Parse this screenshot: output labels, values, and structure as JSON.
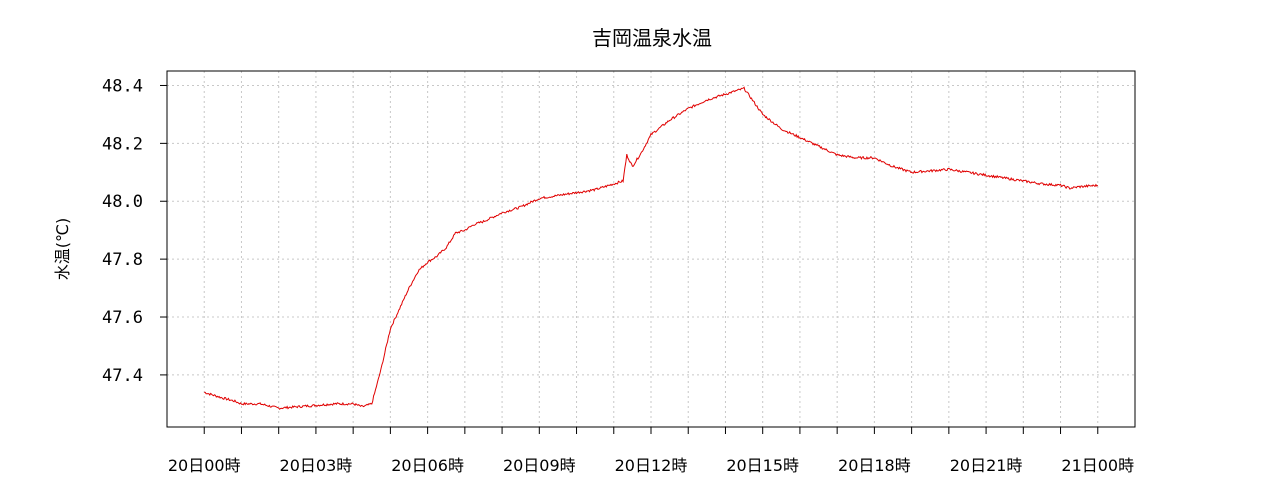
{
  "chart_data": {
    "type": "line",
    "title": "吉岡温泉水温",
    "xlabel": "",
    "ylabel": "水温(℃)",
    "ylim": [
      47.22,
      48.45
    ],
    "xlim_hours": [
      -1,
      25
    ],
    "grid": true,
    "line_color": "#e00000",
    "yticks": [
      47.4,
      47.6,
      47.8,
      48.0,
      48.2,
      48.4
    ],
    "ytick_labels": [
      "47.4",
      "47.6",
      "47.8",
      "48.0",
      "48.2",
      "48.4"
    ],
    "xtick_labels": [
      "20日00時",
      "20日03時",
      "20日06時",
      "20日09時",
      "20日12時",
      "20日15時",
      "20日18時",
      "20日21時",
      "21日00時"
    ],
    "xtick_hours": [
      0,
      3,
      6,
      9,
      12,
      15,
      18,
      21,
      24
    ],
    "minor_xtick_hours": [
      0,
      1,
      2,
      3,
      4,
      5,
      6,
      7,
      8,
      9,
      10,
      11,
      12,
      13,
      14,
      15,
      16,
      17,
      18,
      19,
      20,
      21,
      22,
      23,
      24
    ],
    "series": [
      {
        "name": "",
        "hours": [
          0,
          0.25,
          0.5,
          0.8,
          1.0,
          1.5,
          2.0,
          2.5,
          3.0,
          3.5,
          4.0,
          4.25,
          4.5,
          4.75,
          5.0,
          5.25,
          5.5,
          5.75,
          6.0,
          6.25,
          6.5,
          6.75,
          7.0,
          7.25,
          7.5,
          8.0,
          8.5,
          9.0,
          9.5,
          10.0,
          10.5,
          11.0,
          11.25,
          11.35,
          11.5,
          11.75,
          12.0,
          12.5,
          13.0,
          13.5,
          14.0,
          14.5,
          15.0,
          15.5,
          16.0,
          16.5,
          17.0,
          17.5,
          18.0,
          18.5,
          19.0,
          19.5,
          20.0,
          20.5,
          21.0,
          21.5,
          22.0,
          22.5,
          23.0,
          23.25,
          23.5,
          24.0
        ],
        "values": [
          47.34,
          47.33,
          47.32,
          47.31,
          47.3,
          47.3,
          47.285,
          47.29,
          47.295,
          47.3,
          47.3,
          47.29,
          47.3,
          47.42,
          47.56,
          47.63,
          47.7,
          47.76,
          47.79,
          47.81,
          47.84,
          47.89,
          47.9,
          47.92,
          47.93,
          47.96,
          47.98,
          48.01,
          48.02,
          48.03,
          48.04,
          48.06,
          48.07,
          48.16,
          48.12,
          48.17,
          48.23,
          48.28,
          48.32,
          48.35,
          48.37,
          48.39,
          48.3,
          48.25,
          48.22,
          48.19,
          48.16,
          48.15,
          48.15,
          48.12,
          48.1,
          48.105,
          48.11,
          48.1,
          48.09,
          48.08,
          48.07,
          48.06,
          48.055,
          48.045,
          48.05,
          48.055
        ]
      }
    ]
  }
}
